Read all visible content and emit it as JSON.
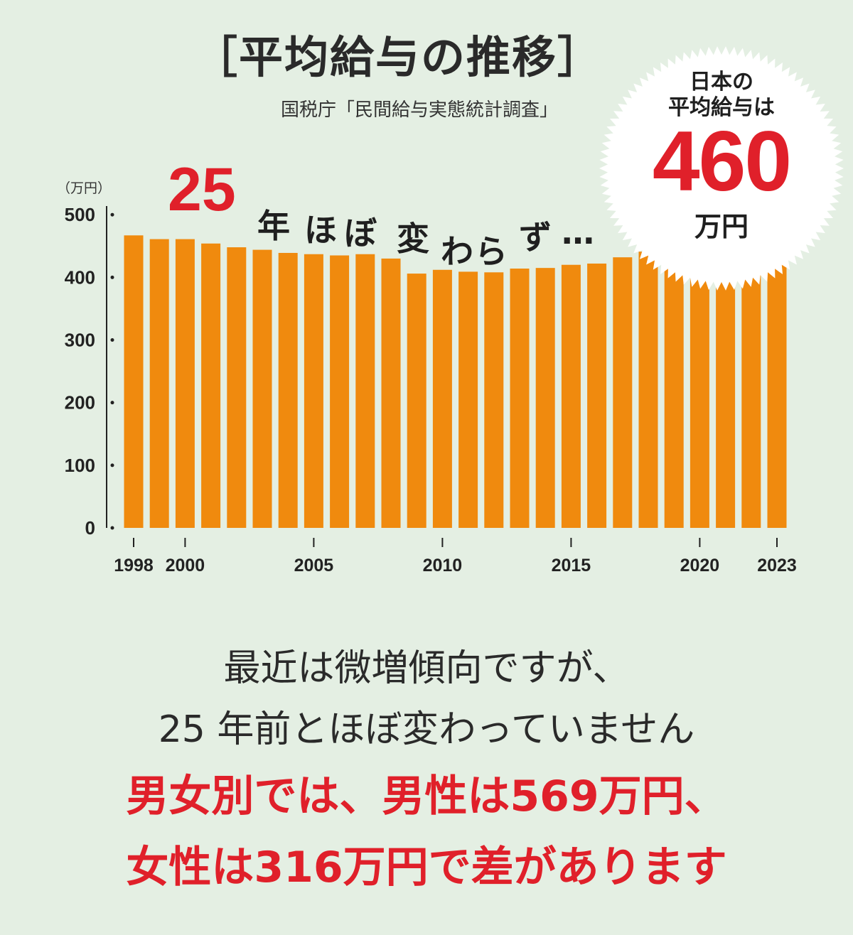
{
  "header": {
    "title": "［平均給与の推移］",
    "source": "国税庁「民間給与実態統計調査」"
  },
  "headline": {
    "number": "25",
    "text": [
      "年",
      "ほ",
      "ぼ",
      "変",
      "わ",
      "ら",
      "ず",
      "…"
    ]
  },
  "badge": {
    "line1": "日本の",
    "line2": "平均給与は",
    "value": "460",
    "unit": "万円"
  },
  "bottom": {
    "line1": "最近は微増傾向ですが、",
    "line2": "25 年前とほぼ変わっていません",
    "line3": "男女別では、男性は569万円、",
    "line4": "女性は316万円で差があります"
  },
  "colors": {
    "background": "#e4efe3",
    "bar": "#f08a0e",
    "accent": "#e0202a"
  },
  "chart_data": {
    "type": "bar",
    "unit_label": "（万円）",
    "categories": [
      1998,
      1999,
      2000,
      2001,
      2002,
      2003,
      2004,
      2005,
      2006,
      2007,
      2008,
      2009,
      2010,
      2011,
      2012,
      2013,
      2014,
      2015,
      2016,
      2017,
      2018,
      2019,
      2020,
      2021,
      2022,
      2023
    ],
    "values": [
      467,
      461,
      461,
      454,
      448,
      444,
      439,
      437,
      435,
      437,
      430,
      406,
      412,
      409,
      408,
      414,
      415,
      420,
      422,
      432,
      441,
      436,
      433,
      443,
      458,
      460
    ],
    "xticks": [
      1998,
      2000,
      2005,
      2010,
      2015,
      2020,
      2023
    ],
    "yticks": [
      0,
      100,
      200,
      300,
      400,
      500
    ],
    "ylim": [
      0,
      520
    ],
    "grid": false,
    "legend": "none"
  }
}
